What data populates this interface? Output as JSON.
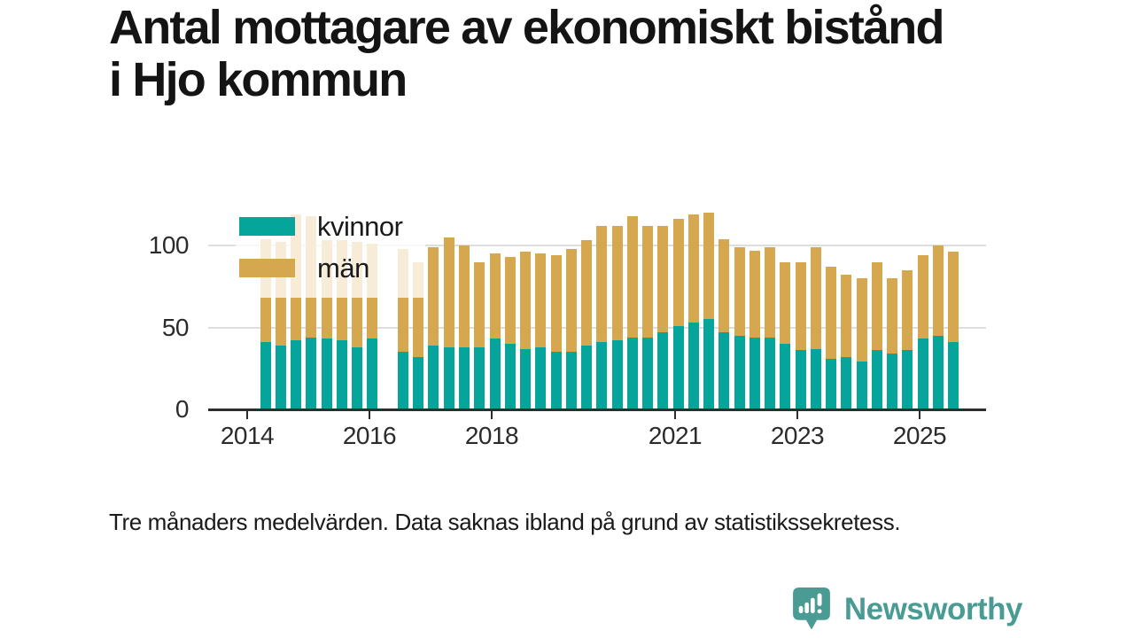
{
  "title": {
    "line1": "Antal mottagare av ekonomiskt bistånd",
    "line2": "i Hjo kommun"
  },
  "footnote": "Tre månaders medelvärden. Data saknas ibland på grund av statistikssekretess.",
  "branding": {
    "name": "Newsworthy",
    "logo_icon": "newsworthy-speech-bubble-bar-chart-icon",
    "color": "#4a9b93"
  },
  "colors": {
    "kvinnor": "#05a59b",
    "man": "#d5a74f",
    "axis": "#2d2d2d",
    "grid": "#dcdee0",
    "text": "#1a1a1a"
  },
  "chart_data": {
    "type": "bar",
    "stacked": true,
    "title": "Antal mottagare av ekonomiskt bistånd i Hjo kommun",
    "subtitle_note": "Tre månaders medelvärden. Data saknas ibland på grund av statistikssekretess.",
    "unit": "antal mottagare (tre månaders medelvärden)",
    "categories": [
      "2014-Q2",
      "2014-Q3",
      "2014-Q4",
      "2015-Q1",
      "2015-Q2",
      "2015-Q3",
      "2015-Q4",
      "2016-Q1",
      "2016-Q2",
      "2016-Q3",
      "2016-Q4",
      "2017-Q1",
      "2017-Q2",
      "2017-Q3",
      "2017-Q4",
      "2018-Q1",
      "2018-Q2",
      "2018-Q3",
      "2018-Q4",
      "2019-Q1",
      "2019-Q2",
      "2019-Q3",
      "2019-Q4",
      "2020-Q1",
      "2020-Q2",
      "2020-Q3",
      "2020-Q4",
      "2021-Q1",
      "2021-Q2",
      "2021-Q3",
      "2021-Q4",
      "2022-Q1",
      "2022-Q2",
      "2022-Q3",
      "2022-Q4",
      "2023-Q1",
      "2023-Q2",
      "2023-Q3",
      "2023-Q4",
      "2024-Q1",
      "2024-Q2",
      "2024-Q3",
      "2024-Q4",
      "2025-Q1",
      "2025-Q2",
      "2025-Q3"
    ],
    "series": [
      {
        "name": "kvinnor",
        "color": "#05a59b",
        "values": [
          41,
          39,
          42,
          44,
          43,
          42,
          38,
          43,
          null,
          35,
          32,
          39,
          38,
          38,
          38,
          43,
          40,
          37,
          38,
          35,
          35,
          39,
          41,
          42,
          44,
          44,
          47,
          51,
          53,
          55,
          47,
          45,
          44,
          44,
          40,
          36,
          37,
          31,
          32,
          29,
          36,
          34,
          36,
          43,
          45,
          41
        ]
      },
      {
        "name": "män",
        "color": "#d5a74f",
        "values": [
          63,
          63,
          77,
          74,
          60,
          61,
          64,
          58,
          null,
          63,
          58,
          60,
          67,
          62,
          52,
          52,
          53,
          59,
          57,
          59,
          63,
          64,
          71,
          70,
          74,
          68,
          65,
          65,
          66,
          65,
          57,
          54,
          53,
          55,
          50,
          54,
          62,
          56,
          50,
          51,
          54,
          46,
          49,
          51,
          55,
          55
        ]
      }
    ],
    "missing_categories": [
      "2016-Q2"
    ],
    "ylim": [
      0,
      127
    ],
    "yticks": [
      0,
      50,
      100
    ],
    "xticks": [
      2014,
      2016,
      2018,
      2021,
      2023,
      2025
    ],
    "grid": "horizontal",
    "legend_position": "top-left-overlay"
  }
}
